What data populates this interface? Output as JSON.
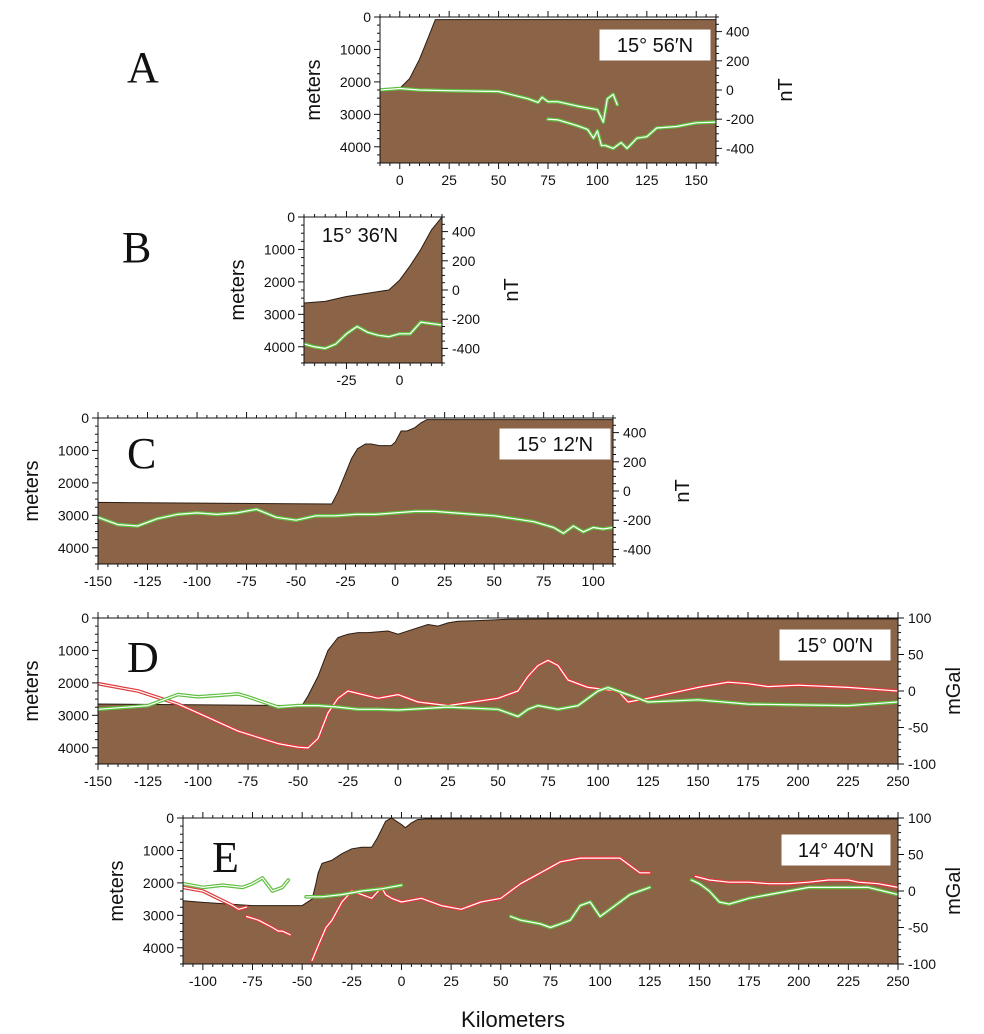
{
  "figure": {
    "xlabel": "Kilometers"
  },
  "colors": {
    "bathymetry": "#8b6347",
    "magnetic": "#5fbf3f",
    "gravity": "#e0393b",
    "halo": "#ffffff",
    "outline": "#111111"
  },
  "chart_data": [
    {
      "id": "A",
      "type": "area",
      "panel_label": "A",
      "latitude_label": "15° 56′N",
      "left_axis": {
        "label": "meters",
        "ylim": [
          0,
          4500
        ],
        "ticks": [
          0,
          1000,
          2000,
          3000,
          4000
        ]
      },
      "right_axis": {
        "label": "nT",
        "ylim": [
          -500,
          500
        ],
        "ticks": [
          400,
          200,
          0,
          -200,
          -400
        ]
      },
      "xlim": [
        -10,
        160
      ],
      "xticks": [
        0,
        25,
        50,
        75,
        100,
        125,
        150
      ],
      "bathymetry": {
        "x": [
          -10,
          0,
          5,
          10,
          14,
          18,
          160
        ],
        "depth": [
          2300,
          2200,
          1900,
          1300,
          700,
          80,
          80
        ]
      },
      "series": [
        {
          "kind": "magnetic",
          "axis": "right",
          "x": [
            -10,
            0,
            10,
            25,
            50,
            65,
            70,
            72,
            75,
            80,
            90,
            100,
            103,
            105,
            108,
            110
          ],
          "values": [
            0,
            10,
            0,
            -5,
            -10,
            -60,
            -85,
            -50,
            -80,
            -80,
            -110,
            -135,
            -220,
            -60,
            -30,
            -100
          ]
        },
        {
          "kind": "magnetic",
          "axis": "right",
          "x": [
            75,
            80,
            85,
            90,
            95,
            98,
            100,
            102,
            104,
            108,
            112,
            115,
            120,
            125,
            130,
            140,
            150,
            160
          ],
          "values": [
            -200,
            -205,
            -225,
            -245,
            -270,
            -330,
            -280,
            -380,
            -380,
            -400,
            -360,
            -400,
            -330,
            -320,
            -260,
            -250,
            -225,
            -220
          ]
        }
      ]
    },
    {
      "id": "B",
      "type": "area",
      "panel_label": "B",
      "latitude_label": "15° 36′N",
      "left_axis": {
        "label": "meters",
        "ylim": [
          0,
          4500
        ],
        "ticks": [
          0,
          1000,
          2000,
          3000,
          4000
        ]
      },
      "right_axis": {
        "label": "nT",
        "ylim": [
          -500,
          500
        ],
        "ticks": [
          400,
          200,
          0,
          -200,
          -400
        ]
      },
      "xlim": [
        -45,
        20
      ],
      "xticks": [
        -25,
        0
      ],
      "bathymetry": {
        "x": [
          -45,
          -35,
          -25,
          -15,
          -5,
          0,
          5,
          10,
          15,
          20
        ],
        "depth": [
          2650,
          2600,
          2450,
          2350,
          2250,
          1950,
          1500,
          1000,
          400,
          0
        ]
      },
      "series": [
        {
          "kind": "magnetic",
          "axis": "right",
          "x": [
            -45,
            -40,
            -35,
            -30,
            -25,
            -20,
            -15,
            -10,
            -5,
            0,
            5,
            10,
            15,
            20
          ],
          "values": [
            -370,
            -390,
            -400,
            -370,
            -300,
            -250,
            -290,
            -310,
            -320,
            -300,
            -300,
            -220,
            -230,
            -240
          ]
        }
      ]
    },
    {
      "id": "C",
      "type": "area",
      "panel_label": "C",
      "latitude_label": "15° 12′N",
      "left_axis": {
        "label": "meters",
        "ylim": [
          0,
          4500
        ],
        "ticks": [
          0,
          1000,
          2000,
          3000,
          4000
        ]
      },
      "right_axis": {
        "label": "nT",
        "ylim": [
          -500,
          500
        ],
        "ticks": [
          400,
          200,
          0,
          -200,
          -400
        ]
      },
      "xlim": [
        -150,
        110
      ],
      "xticks": [
        -150,
        -125,
        -100,
        -75,
        -50,
        -25,
        0,
        25,
        50,
        75,
        100
      ],
      "bathymetry": {
        "x": [
          -150,
          -32,
          -29,
          -25,
          -22,
          -19,
          -15,
          -12,
          -8,
          -5,
          -2,
          0,
          3,
          6,
          10,
          13,
          16,
          110
        ],
        "depth": [
          2600,
          2650,
          2300,
          1700,
          1250,
          950,
          800,
          800,
          850,
          850,
          850,
          750,
          400,
          400,
          300,
          150,
          50,
          50
        ]
      },
      "series": [
        {
          "kind": "magnetic",
          "axis": "right",
          "x": [
            -150,
            -140,
            -130,
            -120,
            -110,
            -100,
            -90,
            -80,
            -70,
            -60,
            -50,
            -40,
            -30,
            -20,
            -10,
            0,
            10,
            20,
            30,
            40,
            50,
            60,
            70,
            80,
            85,
            90,
            95,
            100,
            105,
            110
          ],
          "values": [
            -180,
            -230,
            -240,
            -190,
            -160,
            -150,
            -160,
            -150,
            -125,
            -180,
            -200,
            -170,
            -170,
            -160,
            -160,
            -150,
            -140,
            -140,
            -150,
            -160,
            -170,
            -190,
            -210,
            -250,
            -290,
            -240,
            -280,
            -250,
            -260,
            -250
          ]
        }
      ]
    },
    {
      "id": "D",
      "type": "area",
      "panel_label": "D",
      "latitude_label": "15° 00′N",
      "left_axis": {
        "label": "meters",
        "ylim": [
          0,
          4500
        ],
        "ticks": [
          0,
          1000,
          2000,
          3000,
          4000
        ]
      },
      "right_axis": {
        "label": "mGal",
        "ylim": [
          -100,
          100
        ],
        "ticks": [
          100,
          50,
          0,
          -50,
          -100
        ]
      },
      "xlim": [
        -150,
        250
      ],
      "xticks": [
        -150,
        -125,
        -100,
        -75,
        -50,
        -25,
        0,
        25,
        50,
        75,
        100,
        125,
        150,
        175,
        200,
        225,
        250
      ],
      "bathymetry": {
        "x": [
          -150,
          -48,
          -45,
          -40,
          -35,
          -30,
          -25,
          -20,
          -15,
          -5,
          0,
          10,
          15,
          20,
          25,
          30,
          40,
          55,
          75,
          100,
          125,
          150,
          175,
          200,
          250
        ],
        "depth": [
          2650,
          2700,
          2400,
          1800,
          1000,
          600,
          500,
          450,
          450,
          400,
          500,
          300,
          200,
          250,
          150,
          100,
          80,
          40,
          30,
          30,
          30,
          30,
          30,
          30,
          30
        ]
      },
      "series": [
        {
          "kind": "gravity",
          "axis": "right",
          "x": [
            -150,
            -130,
            -110,
            -100,
            -80,
            -60,
            -50,
            -45,
            -40,
            -35,
            -30,
            -25,
            -10,
            0,
            10,
            25,
            50,
            60,
            65,
            70,
            75,
            80,
            85,
            95,
            110,
            115,
            125,
            150,
            165,
            175,
            185,
            200,
            225,
            250
          ],
          "values": [
            10,
            0,
            -18,
            -30,
            -55,
            -72,
            -77,
            -78,
            -65,
            -30,
            -10,
            0,
            -10,
            -5,
            -15,
            -20,
            -10,
            0,
            20,
            35,
            42,
            35,
            15,
            5,
            0,
            -15,
            -10,
            5,
            12,
            10,
            6,
            8,
            5,
            0
          ]
        },
        {
          "kind": "magnetic",
          "axis": "right",
          "x": [
            -150,
            -125,
            -110,
            -100,
            -90,
            -80,
            -75,
            -60,
            -50,
            -40,
            -30,
            -20,
            -10,
            0,
            25,
            50,
            60,
            65,
            70,
            80,
            90,
            100,
            105,
            110,
            120,
            125,
            150,
            175,
            200,
            225,
            250
          ],
          "values": [
            -25,
            -20,
            -5,
            -8,
            -6,
            -4,
            -8,
            -22,
            -20,
            -20,
            -22,
            -25,
            -25,
            -26,
            -22,
            -25,
            -35,
            -25,
            -20,
            -25,
            -20,
            0,
            5,
            0,
            -10,
            -15,
            -12,
            -18,
            -19,
            -20,
            -15
          ]
        }
      ]
    },
    {
      "id": "E",
      "type": "area",
      "panel_label": "E",
      "latitude_label": "14° 40′N",
      "left_axis": {
        "label": "meters",
        "ylim": [
          0,
          4500
        ],
        "ticks": [
          0,
          1000,
          2000,
          3000,
          4000
        ]
      },
      "right_axis": {
        "label": "mGal",
        "ylim": [
          -100,
          100
        ],
        "ticks": [
          100,
          50,
          0,
          -50,
          -100
        ]
      },
      "xlim": [
        -110,
        250
      ],
      "xticks": [
        -100,
        -75,
        -50,
        -25,
        0,
        25,
        50,
        75,
        100,
        125,
        150,
        175,
        200,
        225,
        250
      ],
      "bathymetry": {
        "x": [
          -110,
          -100,
          -75,
          -50,
          -45,
          -43,
          -42,
          -40,
          -35,
          -30,
          -25,
          -20,
          -15,
          -12,
          -8,
          -5,
          0,
          2,
          5,
          8,
          12,
          20,
          250
        ],
        "depth": [
          2550,
          2600,
          2700,
          2700,
          2500,
          2000,
          1700,
          1400,
          1300,
          1100,
          950,
          900,
          900,
          600,
          100,
          0,
          200,
          300,
          150,
          50,
          30,
          30,
          30
        ]
      },
      "series": [
        {
          "kind": "gravity",
          "axis": "right",
          "x": [
            -110,
            -100,
            -85,
            -82,
            -78
          ],
          "values": [
            5,
            0,
            -20,
            -25,
            -22
          ]
        },
        {
          "kind": "gravity",
          "axis": "right",
          "x": [
            -78,
            -72,
            -65,
            -62,
            -60,
            -56
          ],
          "values": [
            -35,
            -40,
            -50,
            -55,
            -55,
            -60
          ]
        },
        {
          "kind": "gravity",
          "axis": "right",
          "x": [
            -45,
            -42,
            -38,
            -35,
            -30,
            -25,
            -20,
            -15,
            -10,
            -8,
            -5,
            0,
            10,
            20,
            30,
            40,
            50,
            60,
            70,
            80,
            90,
            100,
            110,
            115,
            120,
            125
          ],
          "values": [
            -95,
            -75,
            -50,
            -40,
            -15,
            0,
            -5,
            -10,
            5,
            -5,
            -10,
            -15,
            -10,
            -20,
            -25,
            -15,
            -10,
            10,
            25,
            40,
            45,
            45,
            45,
            35,
            25,
            25
          ]
        },
        {
          "kind": "gravity",
          "axis": "right",
          "x": [
            148,
            155,
            165,
            175,
            185,
            195,
            205,
            215,
            225,
            230,
            240,
            250
          ],
          "values": [
            20,
            15,
            12,
            12,
            10,
            10,
            12,
            15,
            15,
            12,
            10,
            5
          ]
        },
        {
          "kind": "magnetic",
          "axis": "right",
          "x": [
            -110,
            -100,
            -90,
            -80,
            -75,
            -70,
            -65,
            -60,
            -57
          ],
          "values": [
            10,
            5,
            8,
            5,
            10,
            18,
            0,
            5,
            15
          ]
        },
        {
          "kind": "magnetic",
          "axis": "right",
          "x": [
            -48,
            -40,
            -30,
            -20,
            -10,
            0
          ],
          "values": [
            -8,
            -8,
            -5,
            0,
            3,
            8
          ]
        },
        {
          "kind": "magnetic",
          "axis": "right",
          "x": [
            55,
            60,
            70,
            75,
            80,
            85,
            90,
            95,
            100,
            105,
            110,
            115,
            120,
            125
          ],
          "values": [
            -35,
            -40,
            -45,
            -50,
            -45,
            -40,
            -20,
            -15,
            -35,
            -25,
            -15,
            -5,
            0,
            5
          ]
        },
        {
          "kind": "magnetic",
          "axis": "right",
          "x": [
            146,
            150,
            155,
            160,
            165,
            175,
            185,
            195,
            205,
            215,
            225,
            235,
            250
          ],
          "values": [
            15,
            10,
            0,
            -15,
            -18,
            -10,
            -5,
            0,
            5,
            5,
            5,
            5,
            -5
          ]
        }
      ]
    }
  ]
}
